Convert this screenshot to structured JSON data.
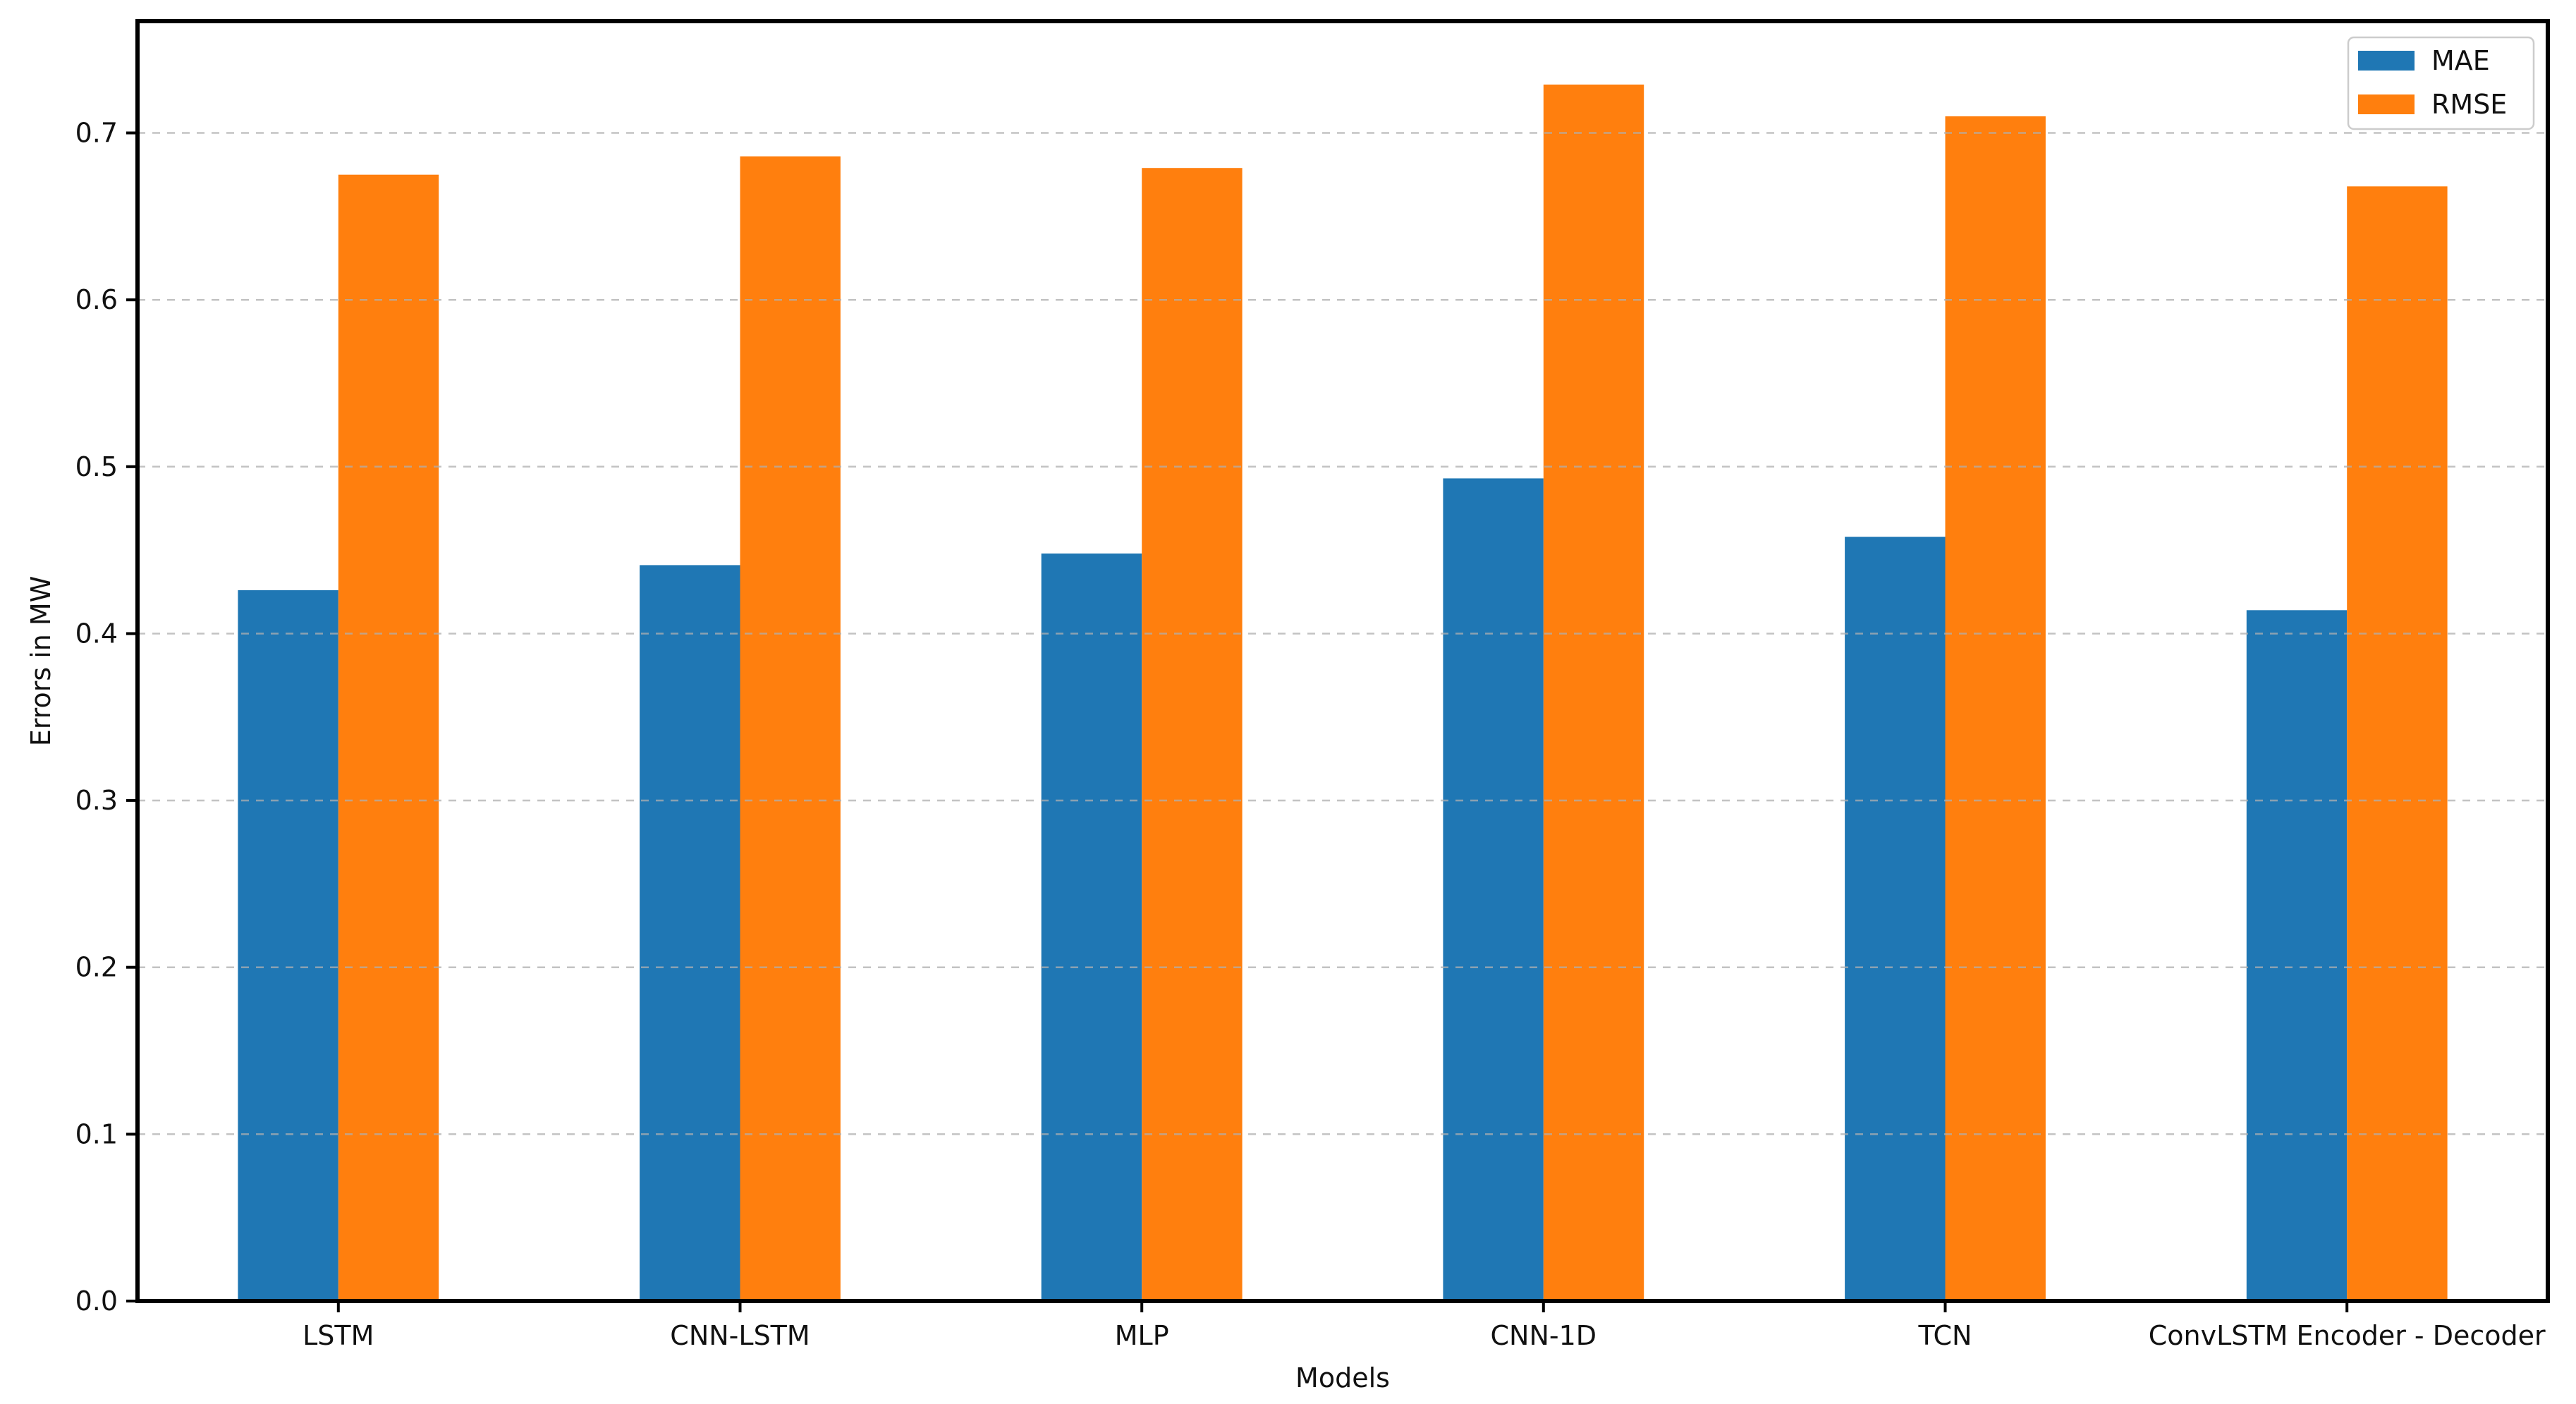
{
  "chart_data": {
    "type": "bar",
    "title": "",
    "xlabel": "Models",
    "ylabel": "Errors in MW",
    "categories": [
      "LSTM",
      "CNN-LSTM",
      "MLP",
      "CNN-1D",
      "TCN",
      "ConvLSTM Encoder - Decoder"
    ],
    "series": [
      {
        "name": "MAE",
        "color": "#1f77b4",
        "values": [
          0.426,
          0.441,
          0.448,
          0.493,
          0.458,
          0.414
        ]
      },
      {
        "name": "RMSE",
        "color": "#ff7f0e",
        "values": [
          0.675,
          0.686,
          0.679,
          0.729,
          0.71,
          0.668
        ]
      }
    ],
    "yticks": [
      "0.0",
      "0.1",
      "0.2",
      "0.3",
      "0.4",
      "0.5",
      "0.6",
      "0.7"
    ],
    "ylim": [
      0,
      0.767
    ],
    "grid": "horizontal-dashed",
    "grid_color": "#b0b0b0",
    "axis_color": "#000000",
    "background": "#ffffff",
    "legend": {
      "position": "upper-right",
      "entries": [
        "MAE",
        "RMSE"
      ]
    }
  }
}
